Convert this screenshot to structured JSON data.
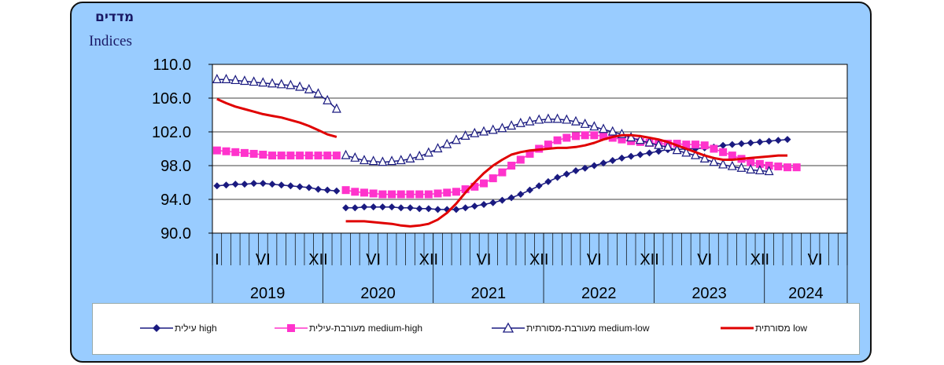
{
  "y_title_he": "מדדים",
  "y_title_en": "Indices",
  "colors": {
    "background": "#99ccff",
    "plot_area": "#ffffff",
    "high": "#1a1a80",
    "medium_high": "#ff33cc",
    "medium_low": "#1a1a80",
    "low": "#e00000"
  },
  "chart_data": {
    "type": "line",
    "ylim": [
      90,
      110
    ],
    "yticks": [
      "110.0",
      "106.0",
      "102.0",
      "98.0",
      "94.0",
      "90.0"
    ],
    "x_month_labels": [
      "I",
      "VI",
      "XII",
      "VI",
      "XII",
      "VI",
      "XII",
      "VI",
      "XII",
      "VI",
      "XII",
      "VI"
    ],
    "years": [
      "2019",
      "2020",
      "2021",
      "2022",
      "2023",
      "2024"
    ],
    "grid": true,
    "legend_position": "bottom",
    "series": [
      {
        "name": "עילית high",
        "marker": "diamond",
        "segments": [
          {
            "start_month": "2019-01",
            "values": [
              95.6,
              95.7,
              95.8,
              95.8,
              95.9,
              95.9,
              95.8,
              95.7,
              95.6,
              95.5,
              95.4,
              95.2,
              95.1,
              95.0
            ]
          },
          {
            "start_month": "2020-03",
            "values": [
              93.0,
              93.0,
              93.1,
              93.1,
              93.1,
              93.1,
              93.0,
              93.0,
              92.9,
              92.9,
              92.8,
              92.8,
              92.8,
              93.0,
              93.2,
              93.4,
              93.6,
              93.9,
              94.2,
              94.6,
              95.1,
              95.6,
              96.1,
              96.6,
              97.0,
              97.4,
              97.7,
              98.0,
              98.3,
              98.6,
              98.9,
              99.1,
              99.3,
              99.5,
              99.7,
              99.9,
              99.9,
              100.0,
              100.0,
              100.1,
              100.2,
              100.4,
              100.5,
              100.6,
              100.7,
              100.8,
              100.9,
              101.0,
              101.1
            ]
          }
        ]
      },
      {
        "name": "מעורבת-עילית medium-high",
        "marker": "square",
        "segments": [
          {
            "start_month": "2019-01",
            "values": [
              99.8,
              99.7,
              99.6,
              99.5,
              99.4,
              99.3,
              99.2,
              99.2,
              99.2,
              99.2,
              99.2,
              99.2,
              99.2,
              99.2
            ]
          },
          {
            "start_month": "2020-03",
            "values": [
              95.1,
              94.9,
              94.8,
              94.7,
              94.6,
              94.6,
              94.6,
              94.6,
              94.6,
              94.6,
              94.7,
              94.8,
              94.9,
              95.2,
              95.5,
              95.9,
              96.5,
              97.2,
              98.0,
              98.7,
              99.4,
              100.0,
              100.5,
              101.0,
              101.3,
              101.5,
              101.6,
              101.6,
              101.5,
              101.3,
              101.1,
              100.9,
              100.8,
              100.7,
              100.6,
              100.6,
              100.6,
              100.5,
              100.5,
              100.4,
              100.0,
              99.6,
              99.2,
              98.8,
              98.4,
              98.2,
              98.0,
              97.9,
              97.8,
              97.8
            ]
          }
        ]
      },
      {
        "name": "מעורבת-מסורתית medium-low",
        "marker": "triangle",
        "segments": [
          {
            "start_month": "2019-01",
            "values": [
              108.2,
              108.2,
              108.1,
              108.0,
              107.9,
              107.8,
              107.7,
              107.6,
              107.5,
              107.3,
              107.0,
              106.5,
              105.7,
              104.7
            ]
          },
          {
            "start_month": "2020-03",
            "values": [
              99.2,
              98.9,
              98.6,
              98.5,
              98.4,
              98.5,
              98.6,
              98.8,
              99.1,
              99.5,
              100.0,
              100.5,
              101.0,
              101.5,
              101.8,
              102.0,
              102.2,
              102.4,
              102.7,
              103.0,
              103.2,
              103.4,
              103.5,
              103.5,
              103.4,
              103.2,
              102.9,
              102.6,
              102.3,
              102.0,
              101.7,
              101.3,
              101.0,
              100.7,
              100.4,
              100.2,
              99.8,
              99.5,
              99.2,
              98.8,
              98.4,
              98.1,
              97.9,
              97.7,
              97.5,
              97.4,
              97.3
            ]
          }
        ]
      },
      {
        "name": "מסורתית low",
        "marker": "none",
        "segments": [
          {
            "start_month": "2019-01",
            "values": [
              105.9,
              105.4,
              105.0,
              104.7,
              104.4,
              104.1,
              103.9,
              103.7,
              103.4,
              103.1,
              102.7,
              102.2,
              101.7,
              101.4
            ]
          },
          {
            "start_month": "2020-03",
            "values": [
              91.4,
              91.4,
              91.4,
              91.3,
              91.2,
              91.1,
              90.9,
              90.8,
              90.9,
              91.1,
              91.6,
              92.4,
              93.5,
              94.8,
              96.0,
              97.1,
              98.0,
              98.7,
              99.3,
              99.6,
              99.8,
              99.9,
              100.0,
              100.1,
              100.1,
              100.2,
              100.4,
              100.7,
              101.1,
              101.4,
              101.6,
              101.6,
              101.5,
              101.3,
              101.1,
              100.8,
              100.4,
              100.0,
              99.6,
              99.2,
              98.9,
              98.7,
              98.7,
              98.8,
              98.9,
              99.0,
              99.1,
              99.2,
              99.2
            ]
          }
        ]
      }
    ]
  }
}
